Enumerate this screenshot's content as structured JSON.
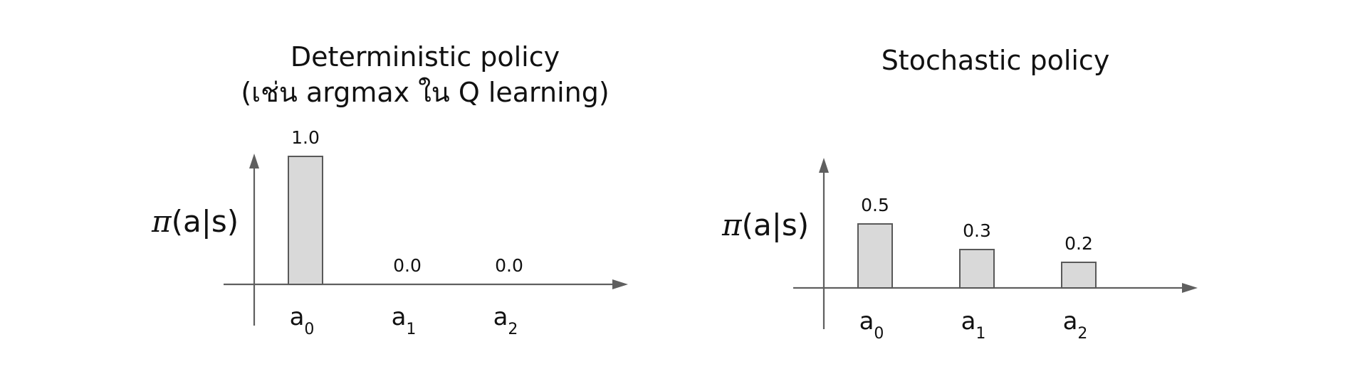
{
  "chart_data": [
    {
      "type": "bar",
      "title": "Deterministic policy",
      "subtitle": "(เช่น argmax ใน Q learning)",
      "ylabel": "π(a|s)",
      "xlabel": "",
      "categories": [
        {
          "base": "a",
          "sub": "0"
        },
        {
          "base": "a",
          "sub": "1"
        },
        {
          "base": "a",
          "sub": "2"
        }
      ],
      "values": [
        1.0,
        0.0,
        0.0
      ],
      "value_labels": [
        "1.0",
        "0.0",
        "0.0"
      ],
      "ylim": [
        0,
        1.0
      ],
      "grid": false
    },
    {
      "type": "bar",
      "title": "Stochastic policy",
      "subtitle": "",
      "ylabel": "π(a|s)",
      "xlabel": "",
      "categories": [
        {
          "base": "a",
          "sub": "0"
        },
        {
          "base": "a",
          "sub": "1"
        },
        {
          "base": "a",
          "sub": "2"
        }
      ],
      "values": [
        0.5,
        0.3,
        0.2
      ],
      "value_labels": [
        "0.5",
        "0.3",
        "0.2"
      ],
      "ylim": [
        0,
        1.0
      ],
      "grid": false
    }
  ],
  "colors": {
    "bar_fill": "#d9d9d9",
    "bar_stroke": "#595959",
    "axis": "#5f5f5f",
    "text": "#111111"
  }
}
